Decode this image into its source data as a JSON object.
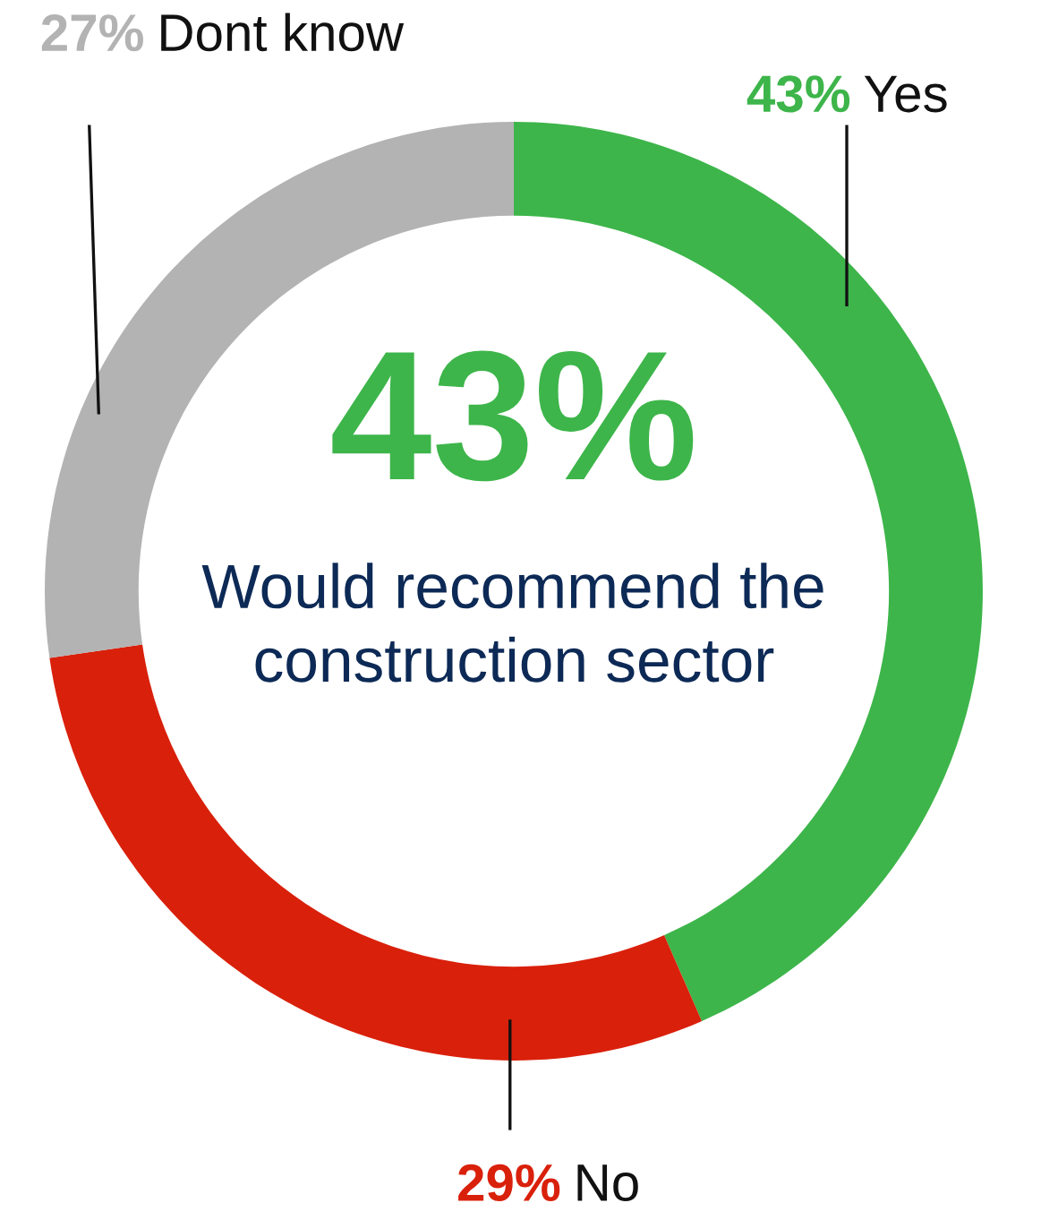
{
  "chart_data": {
    "type": "donut",
    "title": "43%",
    "subtitle": "Would recommend the construction sector",
    "categories": [
      "Yes",
      "No",
      "Dont know"
    ],
    "values": [
      43,
      29,
      27
    ],
    "value_labels": [
      "43%",
      "29%",
      "27%"
    ],
    "colors": [
      "#3db54a",
      "#d9200b",
      "#b3b3b3"
    ],
    "legend": false
  }
}
